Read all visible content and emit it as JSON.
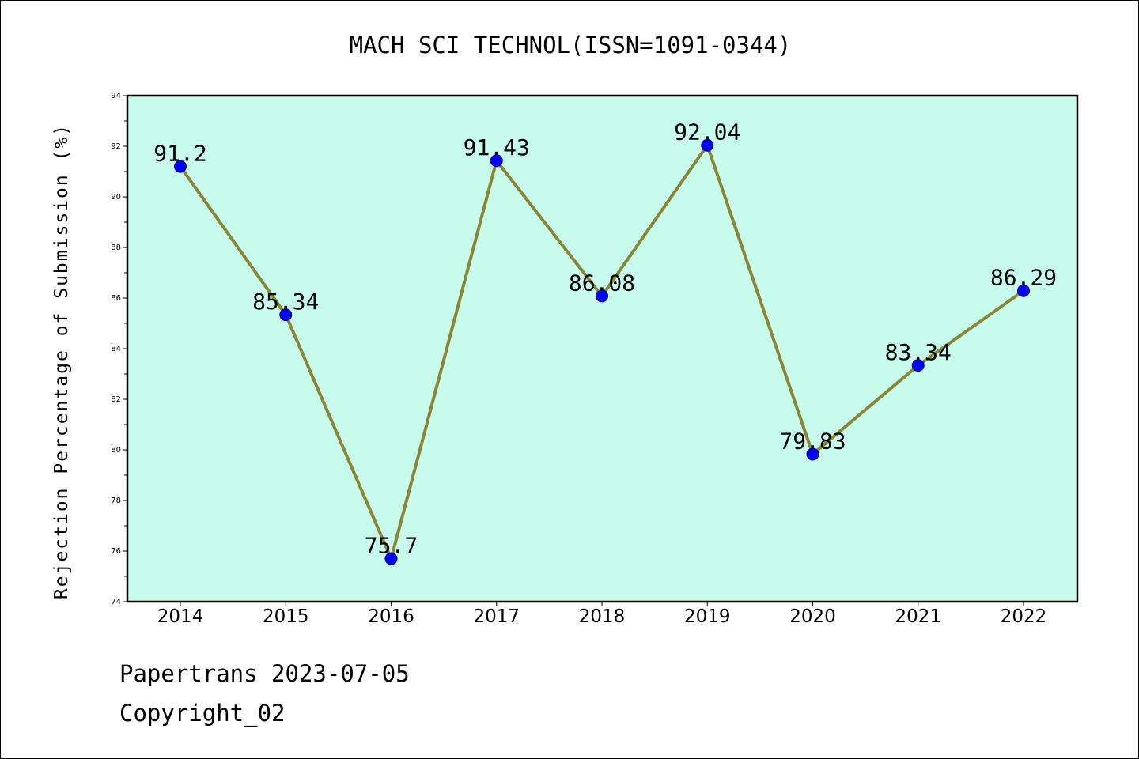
{
  "chart_data": {
    "type": "line",
    "title": "MACH SCI TECHNOL(ISSN=1091-0344)",
    "xlabel": "",
    "ylabel": "Rejection Percentage of Submission (%)",
    "categories": [
      "2014",
      "2015",
      "2016",
      "2017",
      "2018",
      "2019",
      "2020",
      "2021",
      "2022"
    ],
    "series": [
      {
        "values": [
          91.2,
          85.34,
          75.7,
          91.43,
          86.08,
          92.04,
          79.83,
          83.34,
          86.29
        ],
        "labels": [
          "91.2",
          "85.34",
          "75.7",
          "91.43",
          "86.08",
          "92.04",
          "79.83",
          "83.34",
          "86.29"
        ]
      }
    ],
    "ylim": [
      74,
      94
    ],
    "yticks": [
      "74",
      "76",
      "78",
      "80",
      "82",
      "84",
      "86",
      "88",
      "90",
      "92",
      "94"
    ],
    "grid": false,
    "colors": {
      "plot_background": "#c7fcec",
      "line": "#8b8636",
      "marker": "#0000ff"
    }
  },
  "footer": {
    "source": "Papertrans 2023-07-05",
    "copyright": "Copyright_02"
  }
}
